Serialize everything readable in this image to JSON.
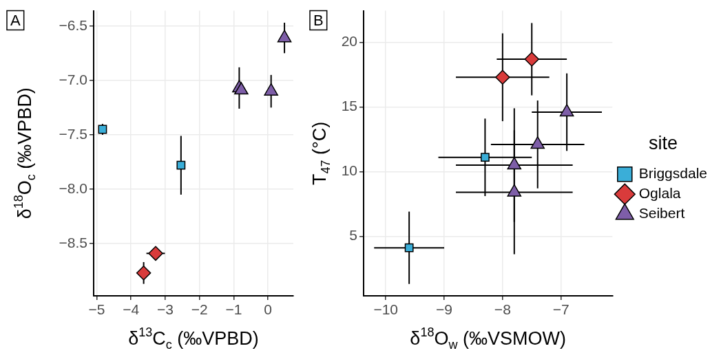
{
  "chart_data": [
    {
      "type": "scatter",
      "title": "A",
      "xlabel": "δ$^{13}$C$_{c}$ (‰VPBD)",
      "ylabel": "δ$^{18}$O$_{c}$ (‰VPBD)",
      "xlim": [
        -5.09,
        0.74
      ],
      "ylim": [
        -8.98,
        -6.36
      ],
      "xticks": [
        {
          "value": -5,
          "label": "−5"
        },
        {
          "value": -4,
          "label": "−4"
        },
        {
          "value": -3,
          "label": "−3"
        },
        {
          "value": -2,
          "label": "−2"
        },
        {
          "value": -1,
          "label": "−1"
        },
        0
      ],
      "yticks": [
        {
          "value": -8.5,
          "label": "−8.5"
        },
        {
          "value": -8,
          "label": "−8.0"
        },
        {
          "value": -7.5,
          "label": "−7.5"
        },
        {
          "value": -7,
          "label": "−7.0"
        },
        {
          "value": -6.5,
          "label": "−6.5"
        }
      ],
      "grid": true,
      "legend": false,
      "series": [
        {
          "color": "#3aaed8",
          "marker": "square",
          "x": [
            -4.83,
            -2.54
          ],
          "values": [
            -7.45,
            -7.78
          ],
          "errors": [
            0.05,
            0.27
          ],
          "xerrors": [
            null,
            null
          ]
        },
        {
          "color": "#d93b3b",
          "marker": "diamond",
          "x": [
            -3.28,
            -3.63
          ],
          "values": [
            -8.59,
            -8.77
          ],
          "errors": [
            null,
            0.1
          ],
          "xerrors": [
            0.27,
            null
          ]
        },
        {
          "color": "#7e5ea8",
          "marker": "triangle",
          "x": [
            -0.84,
            -0.78,
            0.09,
            0.48
          ],
          "values": [
            -7.07,
            -7.09,
            -7.1,
            -6.61
          ],
          "errors": [
            0.19,
            null,
            0.15,
            0.14
          ],
          "xerrors": [
            null,
            null,
            null,
            null
          ]
        }
      ]
    },
    {
      "type": "scatter",
      "title": "B",
      "xlabel": "δ$^{18}$O$_{w}$ (‰VSMOW)",
      "ylabel": "T$_{47}$ (°C)",
      "legend_title": "site",
      "xlim": [
        -10.38,
        -6.12
      ],
      "ylim": [
        0.38,
        22.45
      ],
      "xticks": [
        {
          "value": -10,
          "label": "−10"
        },
        {
          "value": -9,
          "label": "−9"
        },
        {
          "value": -8,
          "label": "−8"
        },
        {
          "value": -7,
          "label": "−7"
        }
      ],
      "yticks": [
        5,
        10,
        15,
        20
      ],
      "grid": true,
      "legend": "right",
      "series": [
        {
          "name": "Briggsdale",
          "color": "#3aaed8",
          "marker": "square",
          "x": [
            -9.6,
            -8.3
          ],
          "values": [
            4.1,
            11.1
          ],
          "errors": [
            2.8,
            3.0
          ],
          "xerrors": [
            0.6,
            0.8
          ]
        },
        {
          "name": "Oglala",
          "color": "#d93b3b",
          "marker": "diamond",
          "x": [
            -8.0,
            -7.5
          ],
          "values": [
            17.3,
            18.7
          ],
          "errors": [
            3.4,
            2.8
          ],
          "xerrors": [
            0.8,
            0.6
          ]
        },
        {
          "name": "Seibert",
          "color": "#7e5ea8",
          "marker": "triangle",
          "x": [
            -6.9,
            -7.4,
            -7.8,
            -7.8
          ],
          "values": [
            14.6,
            12.1,
            10.5,
            8.4
          ],
          "errors": [
            3.0,
            3.4,
            4.4,
            4.8
          ],
          "xerrors": [
            0.6,
            0.8,
            1.0,
            1.0
          ]
        }
      ]
    }
  ]
}
